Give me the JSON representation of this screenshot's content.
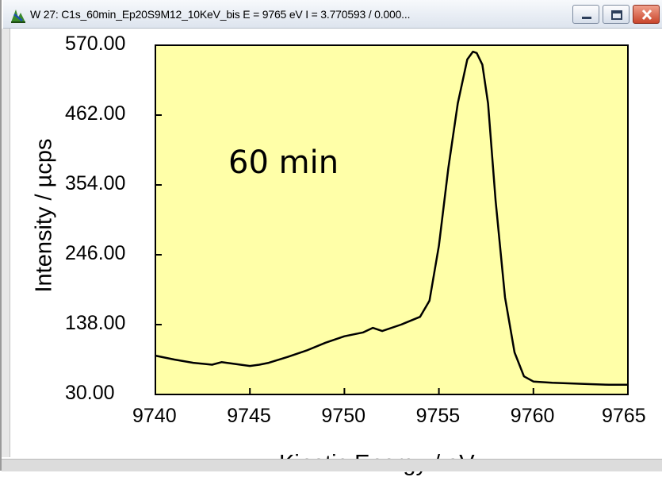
{
  "window": {
    "title": "W 27: C1s_60min_Ep20S9M12_10KeV_bis  E =  9765 eV  I =  3.770593 /  0.000...",
    "app_icon": "spectrum-app-icon",
    "buttons": {
      "minimize": "minimize-icon",
      "maximize": "maximize-icon",
      "close": "close-icon"
    }
  },
  "chart_data": {
    "type": "line",
    "xlabel": "Kinetic Energy / eV",
    "ylabel": "Intensity / µcps",
    "annotation": "60 min",
    "xlim": [
      9740,
      9765
    ],
    "ylim": [
      30,
      570
    ],
    "x_ticks": [
      "9740",
      "9745",
      "9750",
      "9755",
      "9760",
      "9765"
    ],
    "y_ticks": [
      "570.00",
      "462.00",
      "354.00",
      "246.00",
      "138.00",
      "30.00"
    ],
    "plot_background": "#ffffa8",
    "line_color": "#000000",
    "grid": false,
    "series": [
      {
        "x": [
          9740,
          9741,
          9742,
          9743,
          9743.5,
          9744,
          9745,
          9745.5,
          9746,
          9747,
          9748,
          9749,
          9750,
          9751,
          9751.5,
          9752,
          9753,
          9754,
          9754.5,
          9755,
          9755.5,
          9756,
          9756.5,
          9756.8,
          9757,
          9757.3,
          9757.6,
          9758,
          9758.5,
          9759,
          9759.5,
          9760,
          9761,
          9762,
          9763,
          9764,
          9765
        ],
        "y": [
          90,
          84,
          79,
          76,
          80,
          78,
          74,
          76,
          79,
          88,
          98,
          110,
          120,
          126,
          133,
          128,
          138,
          150,
          175,
          260,
          380,
          480,
          548,
          560,
          558,
          540,
          480,
          330,
          180,
          95,
          58,
          50,
          48,
          47,
          46,
          45,
          45
        ]
      }
    ]
  }
}
